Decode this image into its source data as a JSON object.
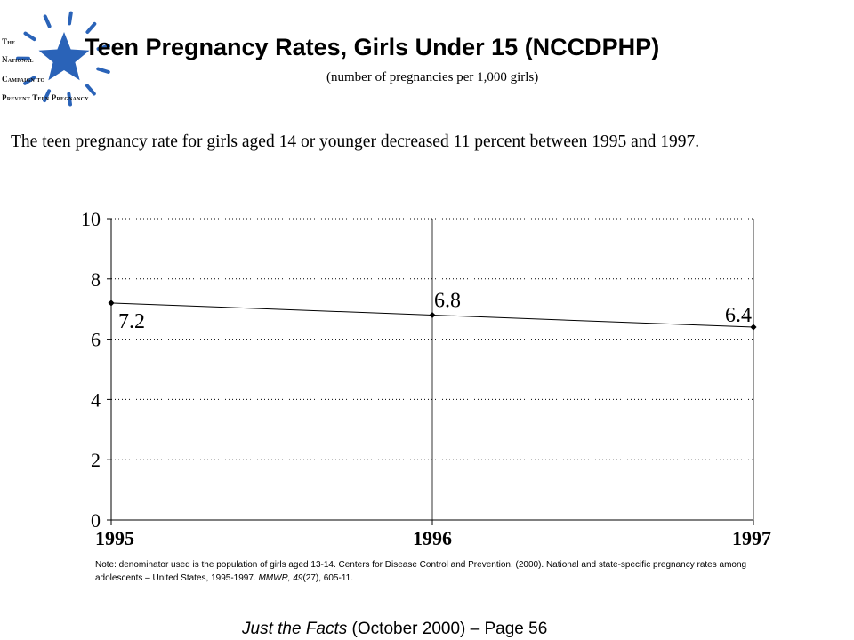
{
  "logo": {
    "line1": "The",
    "line2": "National",
    "line3": "Campaign to",
    "line4": "Prevent Teen Pregnancy",
    "star_color": "#2a63b8",
    "icon": "star-burst-logo"
  },
  "header": {
    "title": "Teen Pregnancy Rates, Girls Under 15 (NCCDPHP)",
    "subtitle": "(number of pregnancies per 1,000 girls)"
  },
  "description": "The teen pregnancy rate for girls aged 14 or younger decreased 11 percent between 1995 and 1997.",
  "chart_data": {
    "type": "line",
    "x": [
      "1995",
      "1996",
      "1997"
    ],
    "series": [
      {
        "values": [
          7.2,
          6.8,
          6.4
        ],
        "data_labels": [
          "7.2",
          "6.8",
          "6.4"
        ]
      }
    ],
    "ylim": [
      0,
      10
    ],
    "y_ticks": [
      "0",
      "2",
      "4",
      "6",
      "8",
      "10"
    ],
    "xlabel": "",
    "ylabel": "",
    "grid": "horizontal dotted",
    "legend": "none",
    "line_color": "#000000"
  },
  "note": {
    "text": "Note: denominator used is the population of girls  aged 13-14. Centers for Disease Control and Prevention. (2000). National and state-specific pregnancy rates among adolescents – United States, 1995-1997. ",
    "journal": "MMWR, 49",
    "issue": "(27), 605-11."
  },
  "footer": {
    "italic": "Just the Facts",
    "rest": " (October 2000) – Page 56"
  }
}
